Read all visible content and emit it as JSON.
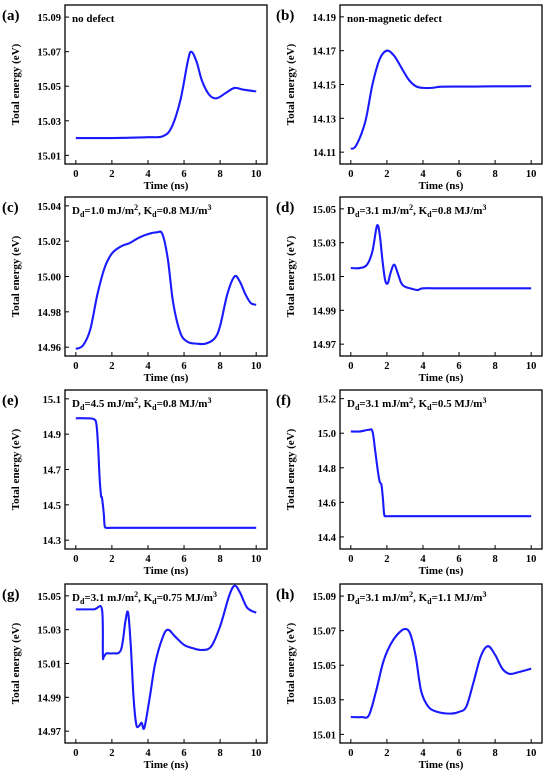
{
  "chart_data": [
    {
      "id": "a",
      "type": "line",
      "panel_label": "(a)",
      "annotation": {
        "text": "no defect"
      },
      "xlabel": "Time (ns)",
      "ylabel": "Total energy (eV)",
      "xlim": [
        -0.6,
        10.6
      ],
      "ylim": [
        15.005,
        15.097
      ],
      "xticks": [
        0,
        2,
        4,
        6,
        8,
        10
      ],
      "yticks": [
        15.01,
        15.03,
        15.05,
        15.07,
        15.09
      ],
      "ytick_labels": [
        "15.01",
        "15.03",
        "15.05",
        "15.07",
        "15.09"
      ],
      "color": "#1a1aff",
      "series": [
        {
          "x": [
            0,
            2,
            3,
            4,
            4.8,
            5.3,
            5.8,
            6.2,
            6.4,
            6.7,
            7.0,
            7.4,
            7.8,
            8.3,
            8.8,
            9.3,
            10
          ],
          "y": [
            15.02,
            15.02,
            15.0202,
            15.0205,
            15.021,
            15.026,
            15.042,
            15.064,
            15.07,
            15.064,
            15.053,
            15.045,
            15.043,
            15.046,
            15.049,
            15.048,
            15.047
          ]
        }
      ]
    },
    {
      "id": "b",
      "type": "line",
      "panel_label": "(b)",
      "annotation": {
        "text": "non-magnetic defect"
      },
      "xlabel": "Time (ns)",
      "ylabel": "Total energy (eV)",
      "xlim": [
        -0.6,
        10.6
      ],
      "ylim": [
        14.103,
        14.197
      ],
      "xticks": [
        0,
        2,
        4,
        6,
        8,
        10
      ],
      "yticks": [
        14.11,
        14.13,
        14.15,
        14.17,
        14.19
      ],
      "ytick_labels": [
        "14.11",
        "14.13",
        "14.15",
        "14.17",
        "14.19"
      ],
      "color": "#1a1aff",
      "series": [
        {
          "x": [
            0,
            0.3,
            0.8,
            1.2,
            1.6,
            2.0,
            2.4,
            2.8,
            3.2,
            3.6,
            4.0,
            4.5,
            5,
            6,
            7,
            8,
            10
          ],
          "y": [
            14.112,
            14.114,
            14.128,
            14.15,
            14.165,
            14.17,
            14.167,
            14.16,
            14.153,
            14.149,
            14.148,
            14.148,
            14.1487,
            14.1488,
            14.1488,
            14.1489,
            14.149
          ]
        }
      ]
    },
    {
      "id": "c",
      "type": "line",
      "panel_label": "(c)",
      "annotation": {
        "text": "D",
        "sub1": "d",
        "mid": "=1.0 mJ/m",
        "sup": "2",
        "mid2": ", K",
        "sub2": "d",
        "tail": "=0.8 MJ/m",
        "sup2": "3"
      },
      "xlabel": "Time (ns)",
      "ylabel": "Total energy (eV)",
      "xlim": [
        -0.6,
        10.6
      ],
      "ylim": [
        14.955,
        15.045
      ],
      "xticks": [
        0,
        2,
        4,
        6,
        8,
        10
      ],
      "yticks": [
        14.96,
        14.98,
        15.0,
        15.02,
        15.04
      ],
      "ytick_labels": [
        "14.96",
        "14.98",
        "15.00",
        "15.02",
        "15.04"
      ],
      "color": "#1a1aff",
      "series": [
        {
          "x": [
            0,
            0.4,
            0.8,
            1.2,
            1.6,
            2.0,
            2.5,
            3.0,
            3.5,
            4.0,
            4.5,
            4.8,
            5.1,
            5.4,
            5.8,
            6.2,
            6.7,
            7.2,
            7.7,
            8.0,
            8.4,
            8.8,
            9.1,
            9.4,
            9.7,
            10
          ],
          "y": [
            14.959,
            14.961,
            14.97,
            14.99,
            15.005,
            15.013,
            15.017,
            15.019,
            15.022,
            15.024,
            15.025,
            15.024,
            15.01,
            14.985,
            14.968,
            14.963,
            14.962,
            14.962,
            14.965,
            14.972,
            14.99,
            15.0,
            14.997,
            14.99,
            14.985,
            14.984
          ]
        }
      ]
    },
    {
      "id": "d",
      "type": "line",
      "panel_label": "(d)",
      "annotation": {
        "text": "D",
        "sub1": "d",
        "mid": "=3.1 mJ/m",
        "sup": "2",
        "mid2": ", K",
        "sub2": "d",
        "tail": "=0.8 MJ/m",
        "sup2": "3"
      },
      "xlabel": "Time (ns)",
      "ylabel": "Total energy (eV)",
      "xlim": [
        -0.6,
        10.6
      ],
      "ylim": [
        14.963,
        15.057
      ],
      "xticks": [
        0,
        2,
        4,
        6,
        8,
        10
      ],
      "yticks": [
        14.97,
        14.99,
        15.01,
        15.03,
        15.05
      ],
      "ytick_labels": [
        "14.97",
        "14.99",
        "15.01",
        "15.03",
        "15.05"
      ],
      "color": "#1a1aff",
      "series": [
        {
          "x": [
            0,
            0.5,
            0.9,
            1.2,
            1.45,
            1.6,
            1.75,
            1.9,
            2.05,
            2.2,
            2.4,
            2.6,
            2.8,
            3.0,
            3.3,
            3.7,
            4.0,
            5,
            6,
            8,
            10
          ],
          "y": [
            15.015,
            15.015,
            15.017,
            15.025,
            15.04,
            15.035,
            15.02,
            15.008,
            15.006,
            15.012,
            15.017,
            15.012,
            15.006,
            15.004,
            15.003,
            15.002,
            15.003,
            15.003,
            15.003,
            15.003,
            15.003
          ]
        }
      ]
    },
    {
      "id": "e",
      "type": "line",
      "panel_label": "(e)",
      "annotation": {
        "text": "D",
        "sub1": "d",
        "mid": "=4.5 mJ/m",
        "sup": "2",
        "mid2": ", K",
        "sub2": "d",
        "tail": "=0.8 MJ/m",
        "sup2": "3"
      },
      "xlabel": "Time (ns)",
      "ylabel": "Total energy (eV)",
      "xlim": [
        -0.6,
        10.6
      ],
      "ylim": [
        14.25,
        15.15
      ],
      "xticks": [
        0,
        2,
        4,
        6,
        8,
        10
      ],
      "yticks": [
        14.3,
        14.5,
        14.7,
        14.9,
        15.1
      ],
      "ytick_labels": [
        "14.3",
        "14.5",
        "14.7",
        "14.9",
        "15.1"
      ],
      "color": "#1a1aff",
      "series": [
        {
          "x": [
            0,
            0.5,
            1.0,
            1.15,
            1.25,
            1.32,
            1.4,
            1.45,
            1.55,
            1.6,
            1.7,
            2.0,
            3,
            5,
            7,
            10
          ],
          "y": [
            14.99,
            14.99,
            14.985,
            14.95,
            14.8,
            14.65,
            14.55,
            14.54,
            14.45,
            14.38,
            14.37,
            14.37,
            14.37,
            14.37,
            14.37,
            14.37
          ]
        }
      ]
    },
    {
      "id": "f",
      "type": "line",
      "panel_label": "(f)",
      "annotation": {
        "text": "D",
        "sub1": "d",
        "mid": "=3.1 mJ/m",
        "sup": "2",
        "mid2": ", K",
        "sub2": "d",
        "tail": "=0.5 MJ/m",
        "sup2": "3"
      },
      "xlabel": "Time (ns)",
      "ylabel": "Total energy (eV)",
      "xlim": [
        -0.6,
        10.6
      ],
      "ylim": [
        14.33,
        15.25
      ],
      "xticks": [
        0,
        2,
        4,
        6,
        8,
        10
      ],
      "yticks": [
        14.4,
        14.6,
        14.8,
        15.0,
        15.2
      ],
      "ytick_labels": [
        "14.4",
        "14.6",
        "14.8",
        "15.0",
        "15.2"
      ],
      "color": "#1a1aff",
      "series": [
        {
          "x": [
            0,
            0.5,
            1.0,
            1.2,
            1.35,
            1.5,
            1.6,
            1.7,
            1.78,
            1.85,
            1.95,
            2.2,
            3,
            5,
            7,
            10
          ],
          "y": [
            15.01,
            15.01,
            15.02,
            15.01,
            14.9,
            14.78,
            14.72,
            14.7,
            14.62,
            14.53,
            14.52,
            14.52,
            14.52,
            14.52,
            14.52,
            14.52
          ]
        }
      ]
    },
    {
      "id": "g",
      "type": "line",
      "panel_label": "(g)",
      "annotation": {
        "text": "D",
        "sub1": "d",
        "mid": "=3.1 mJ/m",
        "sup": "2",
        "mid2": ", K",
        "sub2": "d",
        "tail": "=0.75 MJ/m",
        "sup2": "3"
      },
      "xlabel": "Time (ns)",
      "ylabel": "Total energy (eV)",
      "xlim": [
        -0.6,
        10.6
      ],
      "ylim": [
        14.963,
        15.057
      ],
      "xticks": [
        0,
        2,
        4,
        6,
        8,
        10
      ],
      "yticks": [
        14.97,
        14.99,
        15.01,
        15.03,
        15.05
      ],
      "ytick_labels": [
        "14.97",
        "14.99",
        "15.01",
        "15.03",
        "15.05"
      ],
      "color": "#1a1aff",
      "series": [
        {
          "x": [
            0,
            1.0,
            1.45,
            1.5,
            1.55,
            1.7,
            2.0,
            2.5,
            2.75,
            2.9,
            3.05,
            3.2,
            3.35,
            3.5,
            3.65,
            3.8,
            4.1,
            4.4,
            4.8,
            5.1,
            5.5,
            6.0,
            6.5,
            7.0,
            7.5,
            8.0,
            8.5,
            8.8,
            9.1,
            9.5,
            10
          ],
          "y": [
            15.042,
            15.042,
            15.042,
            15.015,
            15.014,
            15.016,
            15.016,
            15.018,
            15.035,
            15.04,
            15.02,
            14.99,
            14.974,
            14.973,
            14.975,
            14.972,
            14.99,
            15.01,
            15.025,
            15.03,
            15.026,
            15.021,
            15.019,
            15.018,
            15.02,
            15.032,
            15.05,
            15.056,
            15.052,
            15.043,
            15.04
          ]
        }
      ]
    },
    {
      "id": "h",
      "type": "line",
      "panel_label": "(h)",
      "annotation": {
        "text": "D",
        "sub1": "d",
        "mid": "=3.1 mJ/m",
        "sup": "2",
        "mid2": ", K",
        "sub2": "d",
        "tail": "=1.1 MJ/m",
        "sup2": "3"
      },
      "xlabel": "Time (ns)",
      "ylabel": "Total energy (eV)",
      "xlim": [
        -0.6,
        10.6
      ],
      "ylim": [
        15.005,
        15.097
      ],
      "xticks": [
        0,
        2,
        4,
        6,
        8,
        10
      ],
      "yticks": [
        15.01,
        15.03,
        15.05,
        15.07,
        15.09
      ],
      "ytick_labels": [
        "15.01",
        "15.03",
        "15.05",
        "15.07",
        "15.09"
      ],
      "color": "#1a1aff",
      "series": [
        {
          "x": [
            0,
            0.6,
            1.0,
            1.4,
            1.8,
            2.2,
            2.6,
            3.0,
            3.3,
            3.6,
            3.9,
            4.3,
            4.8,
            5.5,
            6.0,
            6.4,
            6.8,
            7.2,
            7.6,
            8.0,
            8.4,
            8.8,
            9.3,
            10
          ],
          "y": [
            15.02,
            15.02,
            15.021,
            15.035,
            15.052,
            15.062,
            15.068,
            15.071,
            15.068,
            15.055,
            15.035,
            15.026,
            15.023,
            15.022,
            15.023,
            15.026,
            15.04,
            15.055,
            15.061,
            15.056,
            15.048,
            15.045,
            15.046,
            15.048
          ]
        }
      ]
    }
  ]
}
